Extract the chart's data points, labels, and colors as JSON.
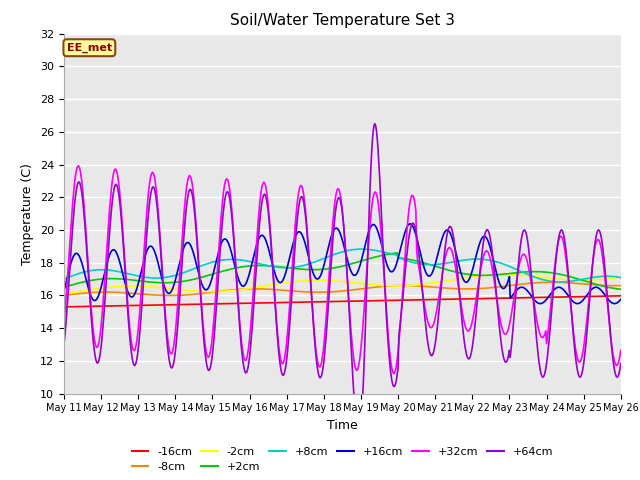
{
  "title": "Soil/Water Temperature Set 3",
  "xlabel": "Time",
  "ylabel": "Temperature (C)",
  "ylim": [
    10,
    32
  ],
  "yticks": [
    10,
    12,
    14,
    16,
    18,
    20,
    22,
    24,
    26,
    28,
    30,
    32
  ],
  "x_tick_labels": [
    "May 11",
    "May 12",
    "May 13",
    "May 14",
    "May 15",
    "May 16",
    "May 17",
    "May 18",
    "May 19",
    "May 20",
    "May 21",
    "May 22",
    "May 23",
    "May 24",
    "May 25",
    "May 26"
  ],
  "background_color": "#e8e8e8",
  "plot_bg_color": "#e8e8e8",
  "annotation_text": "EE_met",
  "annotation_bg": "#ffff99",
  "annotation_border": "#8b4513",
  "annotation_text_color": "#8b0000",
  "series": {
    "-16cm": {
      "color": "#ff0000",
      "lw": 1.2
    },
    "-8cm": {
      "color": "#ff8800",
      "lw": 1.2
    },
    "-2cm": {
      "color": "#ffff00",
      "lw": 1.2
    },
    "+2cm": {
      "color": "#00cc00",
      "lw": 1.2
    },
    "+8cm": {
      "color": "#00cccc",
      "lw": 1.2
    },
    "+16cm": {
      "color": "#0000cc",
      "lw": 1.2
    },
    "+32cm": {
      "color": "#ff00ff",
      "lw": 1.2
    },
    "+64cm": {
      "color": "#9900cc",
      "lw": 1.2
    }
  },
  "grid_color": "#ffffff",
  "grid_lw": 1.0
}
